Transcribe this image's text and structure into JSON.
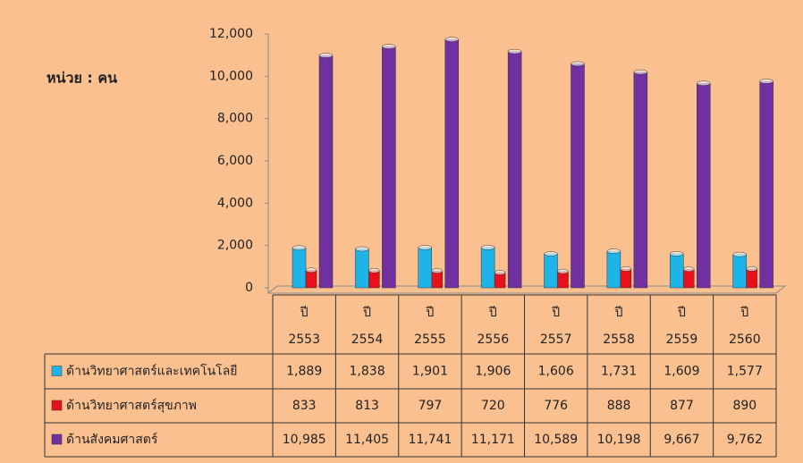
{
  "chart_data": {
    "type": "bar",
    "annotation": "หน่วย : คน",
    "categories": [
      "ปี 2553",
      "ปี 2554",
      "ปี 2555",
      "ปี 2556",
      "ปี 2557",
      "ปี 2558",
      "ปี 2559",
      "ปี 2560"
    ],
    "series": [
      {
        "name": "ด้านวิทยาศาสตร์และเทคโนโลยี",
        "color": "#1fb4e8",
        "values": [
          1889,
          1838,
          1901,
          1906,
          1606,
          1731,
          1609,
          1577
        ],
        "value_labels": [
          "1,889",
          "1,838",
          "1,901",
          "1,906",
          "1,606",
          "1,731",
          "1,609",
          "1,577"
        ]
      },
      {
        "name": "ด้านวิทยาศาสตร์สุขภาพ",
        "color": "#e8101a",
        "values": [
          833,
          813,
          797,
          720,
          776,
          888,
          877,
          890
        ]
      },
      {
        "name": "ด้านสังคมศาสตร์",
        "color": "#7030a0",
        "values": [
          10985,
          11405,
          11741,
          11171,
          10589,
          10198,
          9667,
          9762
        ],
        "value_labels": [
          "10,985",
          "11,405",
          "11,741",
          "11,171",
          "10,589",
          "10,198",
          "9,667",
          "9,762"
        ]
      }
    ],
    "ylim": [
      0,
      12000
    ],
    "yticks": [
      0,
      {
        "value": 2000,
        "label": "2,000"
      },
      {
        "value": 4000,
        "label": "4,000"
      },
      {
        "value": 6000,
        "label": "6,000"
      },
      {
        "value": 8000,
        "label": "8,000"
      },
      {
        "value": 10000,
        "label": "10,000"
      },
      {
        "value": 12000,
        "label": "12,000"
      }
    ]
  }
}
